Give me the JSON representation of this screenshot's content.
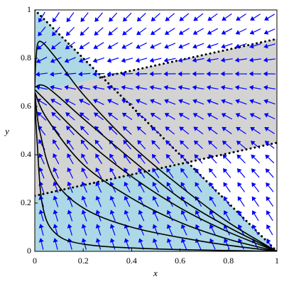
{
  "chart_data": {
    "type": "phase",
    "xlabel": "x",
    "ylabel": "y",
    "xlim": [
      0,
      1
    ],
    "ylim": [
      0,
      1
    ],
    "xticks": [
      0,
      0.2,
      0.4,
      0.6,
      0.8,
      1
    ],
    "yticks": [
      0,
      0.2,
      0.4,
      0.6,
      0.8,
      1
    ],
    "triangle_color": "#add8e6",
    "band_color": "#d3d3d3",
    "band": {
      "x": [
        0,
        1,
        1,
        0
      ],
      "y": [
        0.23,
        0.45,
        0.88,
        0.66
      ]
    },
    "boundaries": [
      {
        "x": [
          0,
          1
        ],
        "y": [
          1,
          0
        ]
      },
      {
        "x": [
          0,
          1
        ],
        "y": [
          0.23,
          0.45
        ]
      },
      {
        "x": [
          0.27,
          1
        ],
        "y": [
          0.72,
          0.88
        ]
      }
    ],
    "arrow_color": "#0000ff",
    "curve_color": "#000000",
    "curves": [
      {
        "x": [
          1,
          0.8,
          0.6,
          0.4,
          0.2,
          0.08,
          0.02,
          0.005,
          0
        ],
        "y": [
          0,
          0.12,
          0.27,
          0.44,
          0.65,
          0.81,
          0.87,
          0.8,
          0.68
        ]
      },
      {
        "x": [
          1,
          0.8,
          0.6,
          0.4,
          0.2,
          0.05,
          0
        ],
        "y": [
          0,
          0.1,
          0.22,
          0.38,
          0.55,
          0.68,
          0.68
        ]
      },
      {
        "x": [
          1,
          0.8,
          0.6,
          0.4,
          0.2,
          0.05,
          0
        ],
        "y": [
          0,
          0.08,
          0.18,
          0.31,
          0.47,
          0.62,
          0.67
        ]
      },
      {
        "x": [
          1,
          0.8,
          0.6,
          0.4,
          0.2,
          0.05,
          0
        ],
        "y": [
          0,
          0.05,
          0.12,
          0.22,
          0.36,
          0.55,
          0.66
        ]
      },
      {
        "x": [
          1,
          0.7,
          0.4,
          0.2,
          0.08,
          0.02,
          0
        ],
        "y": [
          0,
          0.04,
          0.1,
          0.18,
          0.3,
          0.5,
          0.66
        ]
      },
      {
        "x": [
          1,
          0.5,
          0.2,
          0.08,
          0.03,
          0.01,
          0
        ],
        "y": [
          0,
          0.01,
          0.03,
          0.08,
          0.2,
          0.45,
          0.62
        ]
      }
    ]
  }
}
